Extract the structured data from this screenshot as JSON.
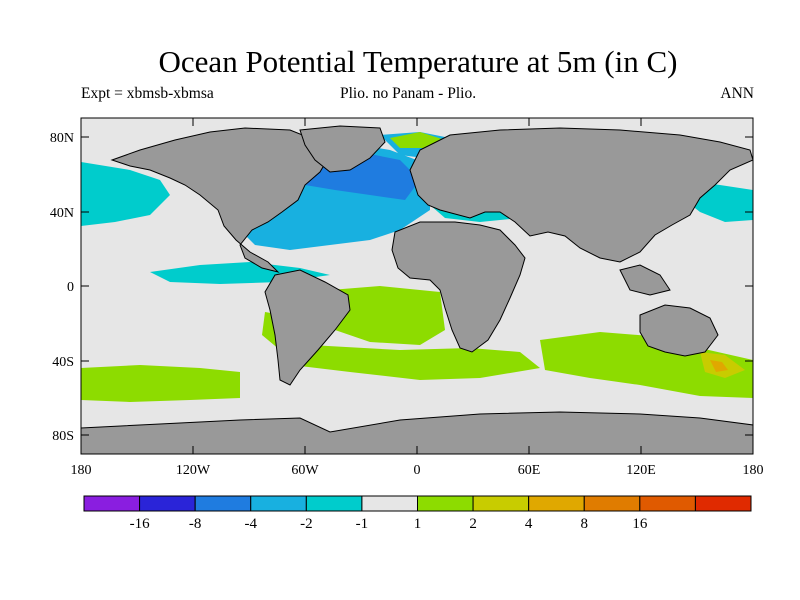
{
  "title": "Ocean Potential Temperature at 5m (in C)",
  "expt_label": "Expt = xbmsb-xbmsa",
  "comparison_label": "Plio. no Panam - Plio.",
  "season_label": "ANN",
  "map": {
    "lat_ticks": [
      "80N",
      "40N",
      "0",
      "40S",
      "80S"
    ],
    "lon_ticks": [
      "180",
      "120W",
      "60W",
      "0",
      "60E",
      "120E",
      "180"
    ],
    "colors": {
      "ocean": "#e6e6e6",
      "land": "#999999",
      "cool1": "#00cccc",
      "cool2": "#18b0e0",
      "cool3": "#1f7ce0",
      "warm1": "#8ddc00",
      "warm2": "#c8cc00",
      "warm3": "#e0a800"
    }
  },
  "colorbar": {
    "colors": [
      "#8a1ee0",
      "#2a24d8",
      "#1f7ce0",
      "#18b0e0",
      "#00cccc",
      "#e6e6e6",
      "#8ddc00",
      "#c8cc00",
      "#e0a800",
      "#e07c00",
      "#e05a00",
      "#e02a00"
    ],
    "labels": [
      "-16",
      "-8",
      "-4",
      "-2",
      "-1",
      "1",
      "2",
      "4",
      "8",
      "16"
    ]
  }
}
